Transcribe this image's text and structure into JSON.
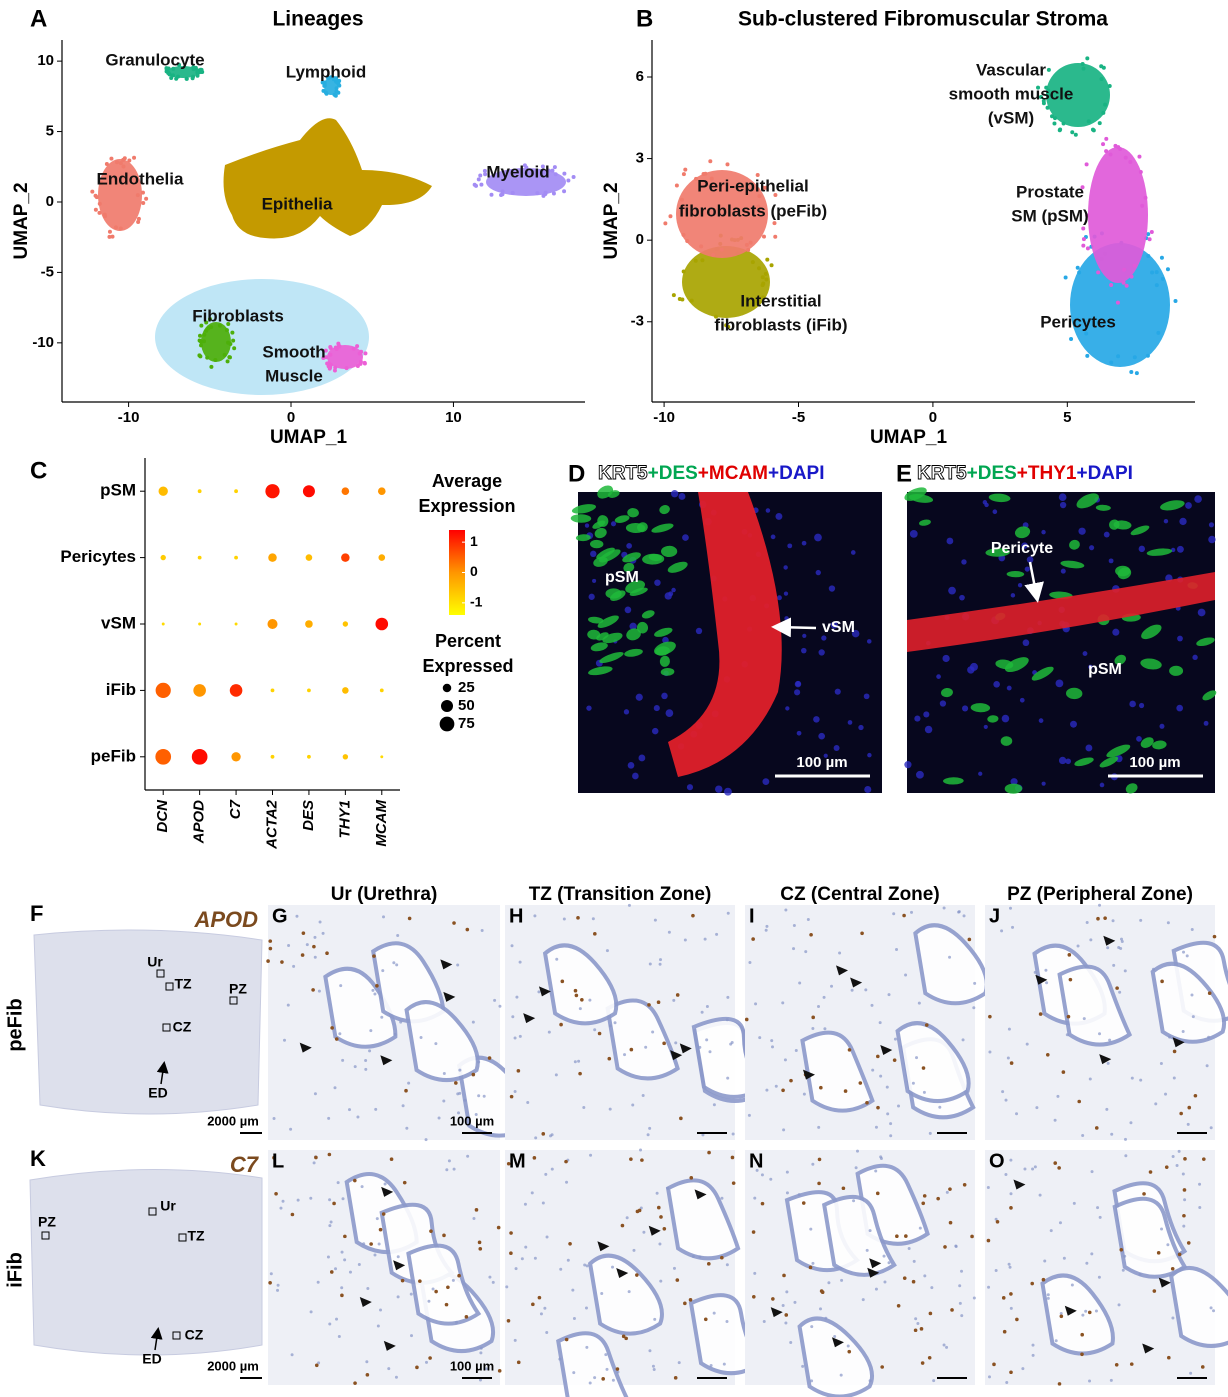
{
  "umap_panels": [
    {
      "letter": "A",
      "title": "Lineages",
      "x_label": "UMAP_1",
      "y_label": "UMAP_2",
      "xlim": [
        -14.1,
        18.1
      ],
      "ylim": [
        -14.2,
        11.5
      ],
      "xticks": [
        -10,
        0,
        10
      ],
      "yticks": [
        -10,
        -5,
        0,
        5,
        10
      ],
      "clusters": [
        {
          "lines": [
            "Granulocyte"
          ],
          "color": "#19b383"
        },
        {
          "lines": [
            "Lymphoid"
          ],
          "color": "#27aee0"
        },
        {
          "lines": [
            "Endothelia"
          ],
          "color": "#f07b6c"
        },
        {
          "lines": [
            "Epithelia"
          ],
          "color": "#c49a00"
        },
        {
          "lines": [
            "Myeloid"
          ],
          "color": "#a38cf4"
        },
        {
          "lines": [
            "Fibroblasts"
          ],
          "color": "#4daf0a"
        },
        {
          "lines": [
            "Smooth",
            "Muscle"
          ],
          "color": "#ec5fd6"
        }
      ]
    },
    {
      "letter": "B",
      "title": "Sub-clustered Fibromuscular Stroma",
      "x_label": "UMAP_1",
      "y_label": "UMAP_2",
      "xlim": [
        -10.45,
        9.75
      ],
      "ylim": [
        -5.95,
        7.36
      ],
      "xticks": [
        -10,
        -5,
        0,
        5
      ],
      "yticks": [
        -3,
        0,
        3,
        6
      ],
      "clusters": [
        {
          "lines": [
            "Interstitial",
            "fibroblasts (iFib)"
          ],
          "color": "#a8a400"
        },
        {
          "lines": [
            "Peri-epithelial",
            "fibroblasts (peFib)"
          ],
          "color": "#f07b6c"
        },
        {
          "lines": [
            "Vascular",
            "smooth muscle",
            "(vSM)"
          ],
          "color": "#19b383"
        },
        {
          "lines": [
            "Pericytes"
          ],
          "color": "#27a8e6"
        },
        {
          "lines": [
            "Prostate",
            "SM (pSM)"
          ],
          "color": "#e05ad9"
        }
      ]
    }
  ],
  "chart_data": {
    "type": "dot",
    "letter": "C",
    "x_categories": [
      "DCN",
      "APOD",
      "C7",
      "ACTA2",
      "DES",
      "THY1",
      "MCAM"
    ],
    "y_categories": [
      "pSM",
      "Pericytes",
      "vSM",
      "iFib",
      "peFib"
    ],
    "expression": [
      [
        -0.5,
        -0.8,
        -0.8,
        1.2,
        1.3,
        0.3,
        0
      ],
      [
        -0.7,
        -0.8,
        -0.8,
        -0.2,
        -0.5,
        0.8,
        -0.3
      ],
      [
        -0.9,
        -0.9,
        -0.9,
        0,
        -0.3,
        -0.6,
        1.3
      ],
      [
        0.5,
        0,
        1.0,
        -0.8,
        -0.8,
        -0.5,
        -0.8
      ],
      [
        0.5,
        1.3,
        0,
        -0.8,
        -0.8,
        -0.6,
        -0.9
      ]
    ],
    "percent": [
      [
        30,
        5,
        5,
        70,
        50,
        20,
        20
      ],
      [
        10,
        5,
        5,
        25,
        15,
        25,
        15
      ],
      [
        3,
        3,
        3,
        35,
        20,
        10,
        55
      ],
      [
        80,
        55,
        55,
        5,
        5,
        15,
        5
      ],
      [
        85,
        85,
        30,
        5,
        5,
        10,
        3
      ]
    ],
    "color_legend_title": [
      "Average",
      "Expression"
    ],
    "color_lim": [
      -1.4,
      1.4
    ],
    "color_ticks": [
      1,
      0,
      -1
    ],
    "color_scale": [
      "#ffff00",
      "#ff0000"
    ],
    "size_legend_title": [
      "Percent",
      "Expressed"
    ],
    "size_ticks": [
      25,
      50,
      75
    ]
  },
  "fluorescence": [
    {
      "letter": "D",
      "stain": [
        {
          "text": "KRT5",
          "color": "#ffffff"
        },
        {
          "text": "+DES",
          "color": "#00a651"
        },
        {
          "text": "+MCAM",
          "color": "#e00000"
        },
        {
          "text": "+DAPI",
          "color": "#1818c8"
        }
      ],
      "labels": [
        "pSM",
        "vSM"
      ],
      "scale_bar": "100 µm"
    },
    {
      "letter": "E",
      "stain": [
        {
          "text": "KRT5",
          "color": "#ffffff"
        },
        {
          "text": "+DES",
          "color": "#00a651"
        },
        {
          "text": "+THY1",
          "color": "#e00000"
        },
        {
          "text": "+DAPI",
          "color": "#1818c8"
        }
      ],
      "labels": [
        "Pericyte",
        "pSM"
      ],
      "scale_bar": "100 µm"
    }
  ],
  "ihc": {
    "headings": [
      "Ur (Urethra)",
      "TZ (Transition Zone)",
      "CZ (Central Zone)",
      "PZ (Peripheral Zone)"
    ],
    "rows": [
      {
        "row_label": "peFib",
        "gene": "APOD",
        "overview_letter": "F",
        "zones": [
          "Ur",
          "TZ",
          "PZ",
          "CZ",
          "ED"
        ],
        "overview_scale_bar": "2000 µm",
        "zoom_letters": [
          "G",
          "H",
          "I",
          "J"
        ],
        "zoom_scale_bar": "100 µm"
      },
      {
        "row_label": "iFib",
        "gene": "C7",
        "overview_letter": "K",
        "zones": [
          "PZ",
          "Ur",
          "TZ",
          "CZ",
          "ED"
        ],
        "overview_scale_bar": "2000 µm",
        "zoom_letters": [
          "L",
          "M",
          "N",
          "O"
        ],
        "zoom_scale_bar": "100 µm"
      }
    ]
  }
}
